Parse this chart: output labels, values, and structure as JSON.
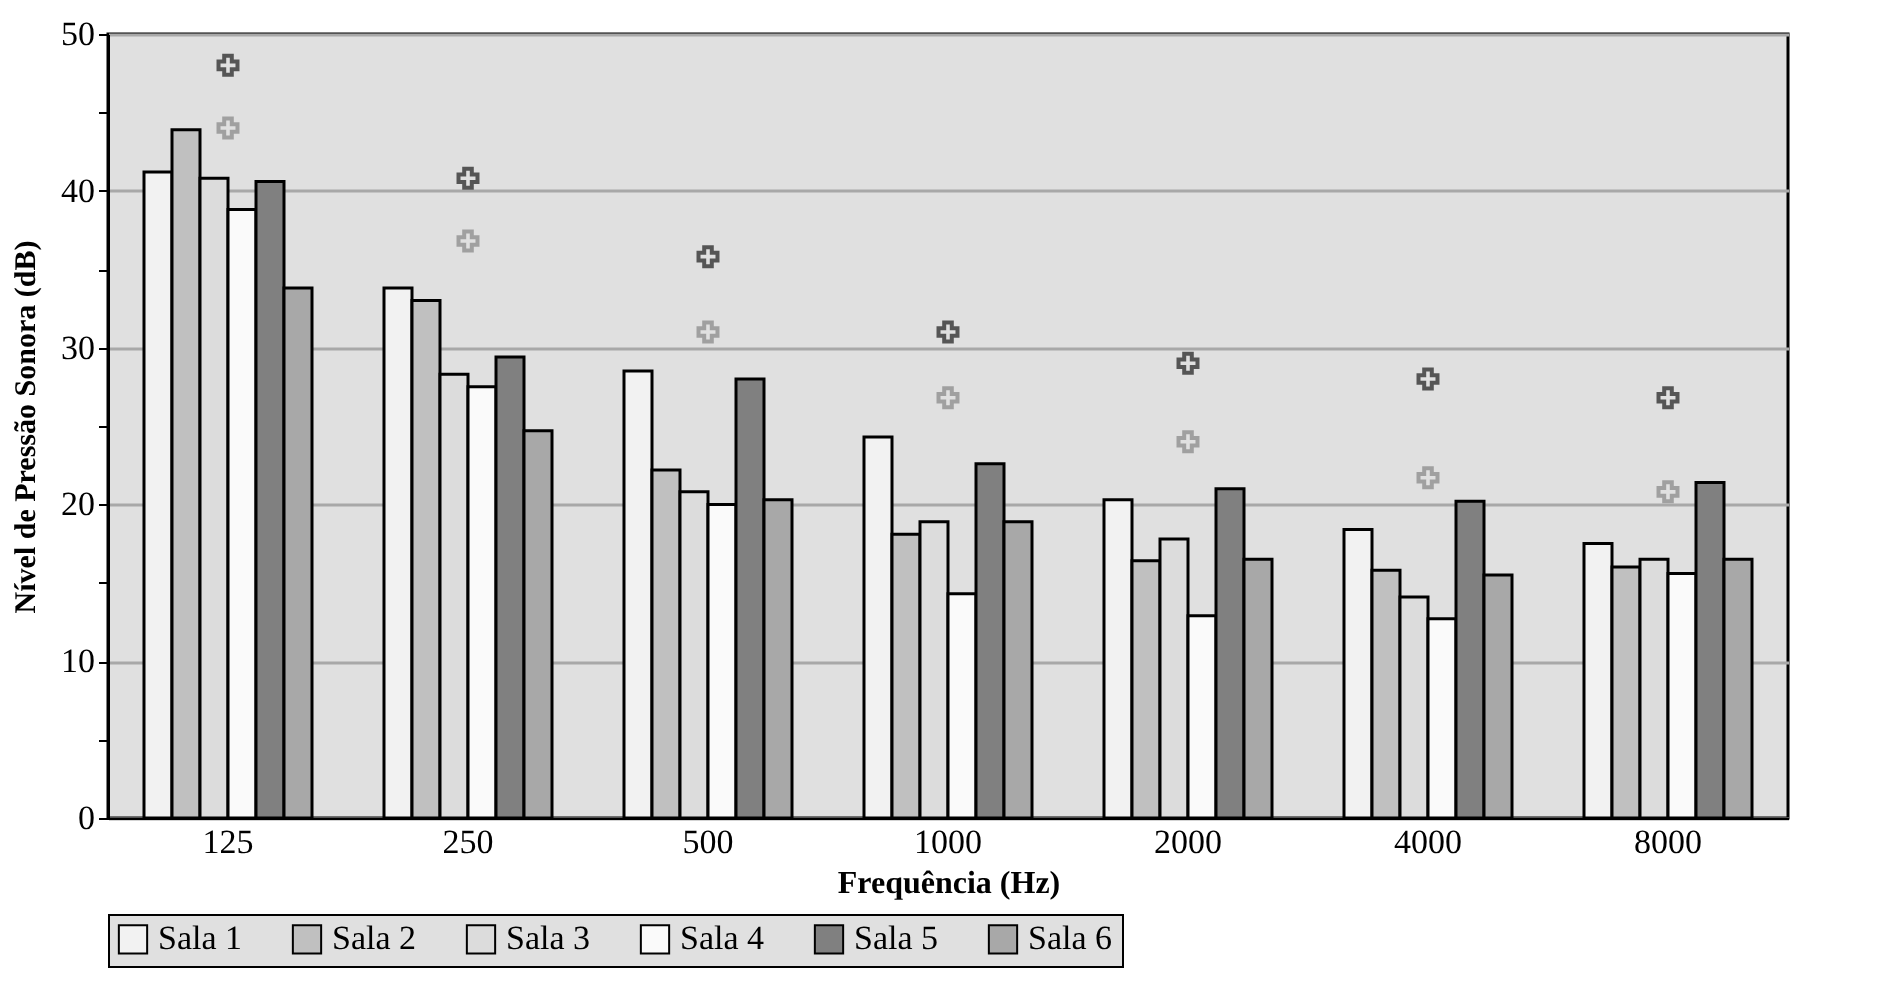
{
  "chart_data": {
    "type": "bar",
    "xlabel": "Frequência (Hz)",
    "ylabel": "Nível de Pressão Sonora (dB)",
    "categories": [
      "125",
      "250",
      "500",
      "1000",
      "2000",
      "4000",
      "8000"
    ],
    "series": [
      {
        "name": "Sala 1",
        "color": "#f2f2f2",
        "values": [
          41.2,
          33.8,
          28.5,
          24.3,
          20.3,
          18.4,
          17.5
        ]
      },
      {
        "name": "Sala 2",
        "color": "#c0c0c0",
        "values": [
          43.9,
          33,
          22.2,
          18.1,
          16.4,
          15.8,
          16
        ]
      },
      {
        "name": "Sala 3",
        "color": "#dcdcdc",
        "values": [
          40.8,
          28.3,
          20.8,
          18.9,
          17.8,
          14.1,
          16.5
        ]
      },
      {
        "name": "Sala 4",
        "color": "#fafafa",
        "values": [
          38.8,
          27.5,
          20,
          14.3,
          12.9,
          12.7,
          15.6
        ]
      },
      {
        "name": "Sala 5",
        "color": "#808080",
        "values": [
          40.6,
          29.4,
          28,
          22.6,
          21,
          20.2,
          21.4
        ]
      },
      {
        "name": "Sala 6",
        "color": "#a8a8a8",
        "values": [
          33.8,
          24.7,
          20.3,
          18.9,
          16.5,
          15.5,
          16.5
        ]
      },
      {
        "type": "scatter",
        "marker": "cross",
        "color": "#555555",
        "values": [
          48,
          40.8,
          35.8,
          31,
          29,
          28,
          26.8
        ]
      },
      {
        "type": "scatter",
        "marker": "cross",
        "color": "#a0a0a0",
        "values": [
          44,
          36.8,
          31,
          26.8,
          24,
          21.7,
          20.8
        ]
      }
    ],
    "ylim": [
      0,
      50
    ],
    "yticks": [
      0,
      {
        "value": 5,
        "label": null
      },
      10,
      {
        "value": 15,
        "label": null
      },
      20,
      {
        "value": 25,
        "label": null
      },
      30,
      {
        "value": 35,
        "label": null
      },
      40,
      {
        "value": 45,
        "label": null
      },
      50
    ],
    "grid": "y",
    "legend": "bottom"
  }
}
